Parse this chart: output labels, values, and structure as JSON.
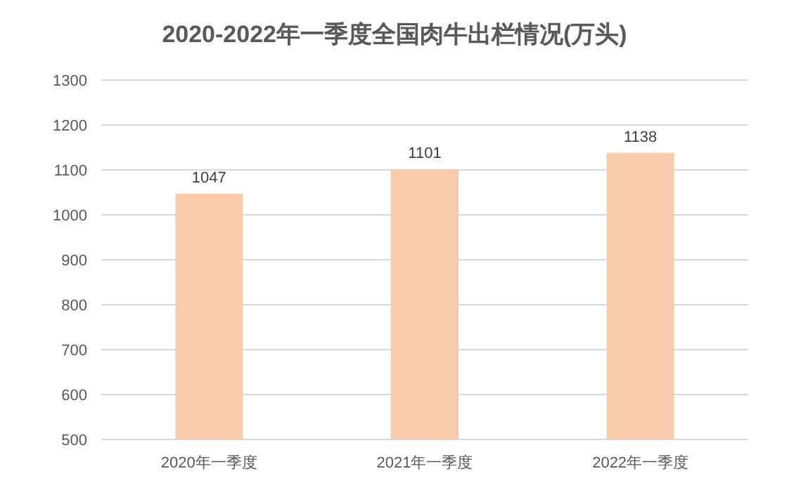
{
  "chart_data": {
    "type": "bar",
    "title": "2020-2022年一季度全国肉牛出栏情况(万头)",
    "categories": [
      "2020年一季度",
      "2021年一季度",
      "2022年一季度"
    ],
    "values": [
      1047,
      1101,
      1138
    ],
    "color": "#f8cbad",
    "ylim": [
      500,
      1300
    ],
    "yticks": [
      500,
      600,
      700,
      800,
      900,
      1000,
      1100,
      1200,
      1300
    ],
    "grid": "y",
    "data_labels": true
  }
}
